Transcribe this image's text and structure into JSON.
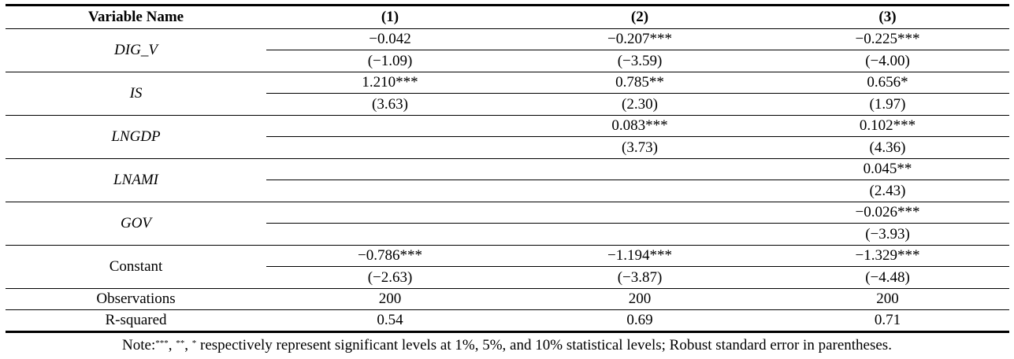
{
  "table": {
    "headers": [
      "Variable Name",
      "(1)",
      "(2)",
      "(3)"
    ],
    "rows": [
      {
        "name": "DIG_V",
        "italic": true,
        "coef": [
          "−0.042",
          "−0.207***",
          "−0.225***"
        ],
        "t": [
          "(−1.09)",
          "(−3.59)",
          "(−4.00)"
        ]
      },
      {
        "name": "IS",
        "italic": true,
        "coef": [
          "1.210***",
          "0.785**",
          "0.656*"
        ],
        "t": [
          "(3.63)",
          "(2.30)",
          "(1.97)"
        ]
      },
      {
        "name": "LNGDP",
        "italic": true,
        "coef": [
          "",
          "0.083***",
          "0.102***"
        ],
        "t": [
          "",
          "(3.73)",
          "(4.36)"
        ]
      },
      {
        "name": "LNAMI",
        "italic": true,
        "coef": [
          "",
          "",
          "0.045**"
        ],
        "t": [
          "",
          "",
          "(2.43)"
        ]
      },
      {
        "name": "GOV",
        "italic": true,
        "coef": [
          "",
          "",
          "−0.026***"
        ],
        "t": [
          "",
          "",
          "(−3.93)"
        ]
      },
      {
        "name": "Constant",
        "italic": false,
        "coef": [
          "−0.786***",
          "−1.194***",
          "−1.329***"
        ],
        "t": [
          "(−2.63)",
          "(−3.87)",
          "(−4.48)"
        ]
      }
    ],
    "observations": {
      "label": "Observations",
      "values": [
        "200",
        "200",
        "200"
      ]
    },
    "rsquared": {
      "label": "R-squared",
      "values": [
        "0.54",
        "0.69",
        "0.71"
      ]
    }
  },
  "note": {
    "prefix": "Note:",
    "sup1": "***",
    "sep1": ", ",
    "sup2": "**",
    "sep2": ", ",
    "sup3": "*",
    "text": " respectively represent significant levels at 1%, 5%, and 10% statistical levels; Robust standard error in parentheses."
  }
}
